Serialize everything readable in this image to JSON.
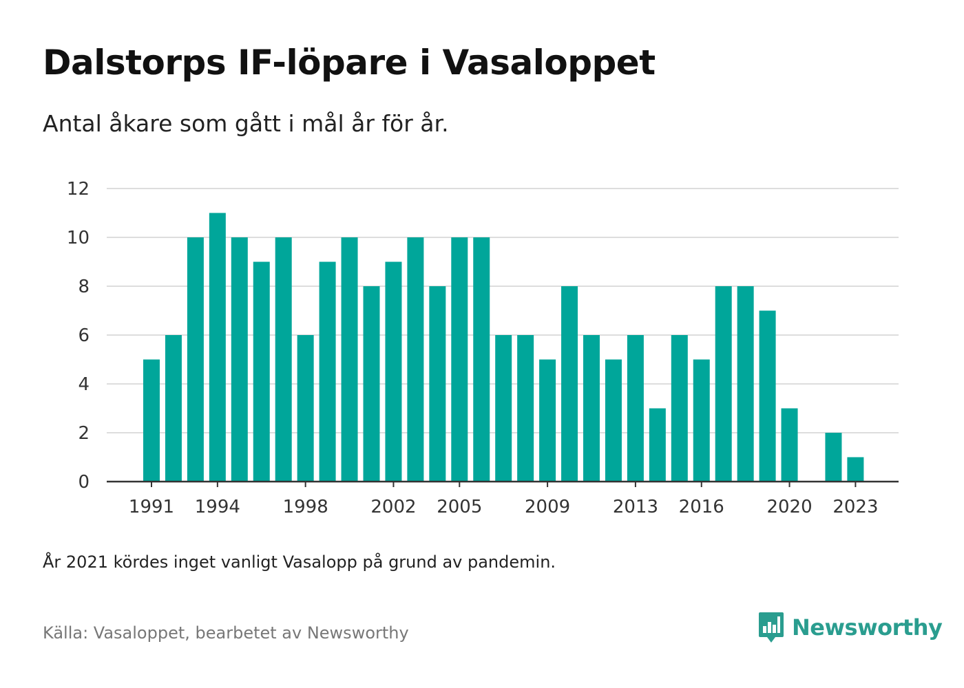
{
  "header": {
    "title": "Dalstorps IF-löpare i Vasaloppet",
    "subtitle": "Antal åkare som gått i mål år för år."
  },
  "footer": {
    "note": "År 2021 kördes inget vanligt Vasalopp på grund av pandemin.",
    "source": "Källa: Vasaloppet, bearbetet av Newsworthy",
    "logo_text": "Newsworthy",
    "logo_icon": "newsworthy-bar-chart-icon"
  },
  "colors": {
    "bar": "#00a69a",
    "gridline": "#dddddd",
    "axis": "#333333",
    "brand": "#2a9d8f"
  },
  "chart_data": {
    "type": "bar",
    "categories": [
      "1991",
      "1992",
      "1993",
      "1994",
      "1995",
      "1996",
      "1997",
      "1998",
      "1999",
      "2000",
      "2001",
      "2002",
      "2003",
      "2004",
      "2005",
      "2006",
      "2007",
      "2008",
      "2009",
      "2010",
      "2011",
      "2012",
      "2013",
      "2014",
      "2015",
      "2016",
      "2017",
      "2018",
      "2019",
      "2020",
      "2021",
      "2022",
      "2023"
    ],
    "values": [
      5,
      6,
      10,
      11,
      10,
      9,
      10,
      6,
      9,
      10,
      8,
      9,
      10,
      8,
      10,
      10,
      6,
      6,
      5,
      8,
      6,
      5,
      6,
      3,
      6,
      5,
      8,
      8,
      7,
      3,
      null,
      2,
      1
    ],
    "x_tick_labels": [
      "1991",
      "1994",
      "1998",
      "2002",
      "2005",
      "2009",
      "2013",
      "2016",
      "2020",
      "2023"
    ],
    "y_ticks": [
      0,
      2,
      4,
      6,
      8,
      10,
      12
    ],
    "ylim": [
      0,
      12
    ],
    "xlabel": "",
    "ylabel": "",
    "grid": true
  }
}
